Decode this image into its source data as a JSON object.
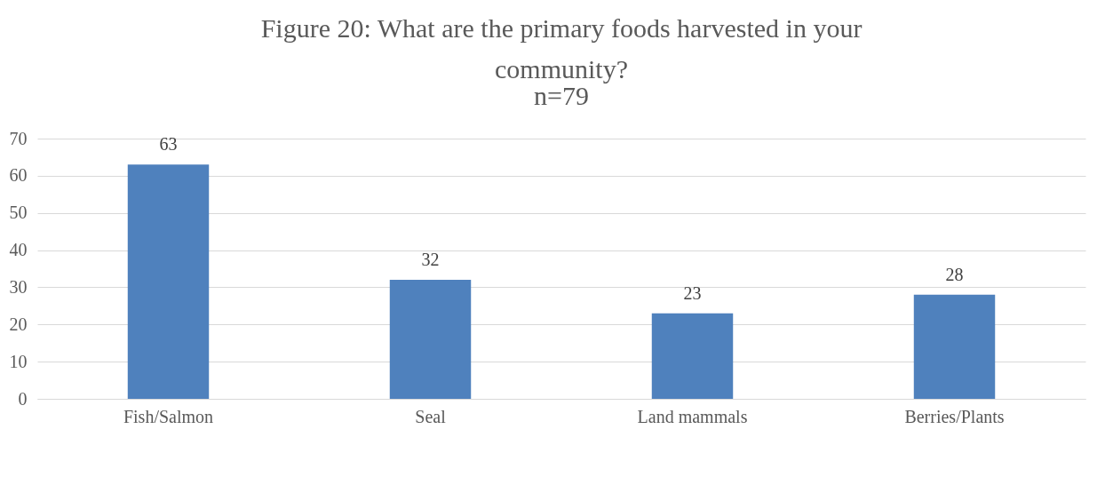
{
  "chart_data": {
    "type": "bar",
    "title": "Figure 20: What are the primary foods harvested in your community?",
    "subtitle": "n=79",
    "categories": [
      "Fish/Salmon",
      "Seal",
      "Land mammals",
      "Berries/Plants"
    ],
    "values": [
      63,
      32,
      23,
      28
    ],
    "color": "#4f81bd",
    "ylim": [
      0,
      70
    ],
    "yticks": [
      0,
      10,
      20,
      30,
      40,
      50,
      60,
      70
    ],
    "grid": "y",
    "data_labels": true
  }
}
